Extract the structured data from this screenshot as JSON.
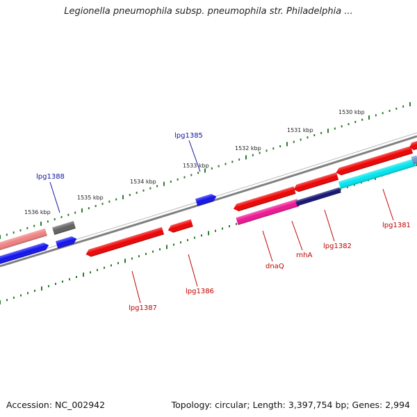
{
  "title": "Legionella pneumophila subsp. pneumophila str. Philadelphia ...",
  "footer": {
    "accession": "Accession: NC_002942",
    "topology": "Topology: circular; Length: 3,397,754 bp; Genes: 2,994"
  },
  "colors": {
    "backbone": "#808080",
    "tick_dots": "#2a7a2a",
    "label_upper": "#1010a0",
    "label_lower": "#c00000",
    "gene_red": "#ee0000",
    "gene_blue": "#1010ee",
    "gene_pink": "#f08080",
    "gene_magenta": "#ee1493",
    "gene_navy": "#101070",
    "gene_cyan": "#00e5ee",
    "gene_gray": "#606060"
  },
  "ticks": [
    {
      "text": "1536 kbp"
    },
    {
      "text": "1535 kbp"
    },
    {
      "text": "1534 kbp"
    },
    {
      "text": "1533 kbp"
    },
    {
      "text": "1532 kbp"
    },
    {
      "text": "1531 kbp"
    },
    {
      "text": "1530 kbp"
    }
  ],
  "gene_labels": [
    {
      "text": "lpg1388",
      "strand": "upper"
    },
    {
      "text": "lpg1385",
      "strand": "upper"
    },
    {
      "text": "lpg1387",
      "strand": "lower"
    },
    {
      "text": "lpg1386",
      "strand": "lower"
    },
    {
      "text": "dnaQ",
      "strand": "lower"
    },
    {
      "text": "rnhA",
      "strand": "lower"
    },
    {
      "text": "lpg1382",
      "strand": "lower"
    },
    {
      "text": "lpg1381",
      "strand": "lower"
    }
  ]
}
